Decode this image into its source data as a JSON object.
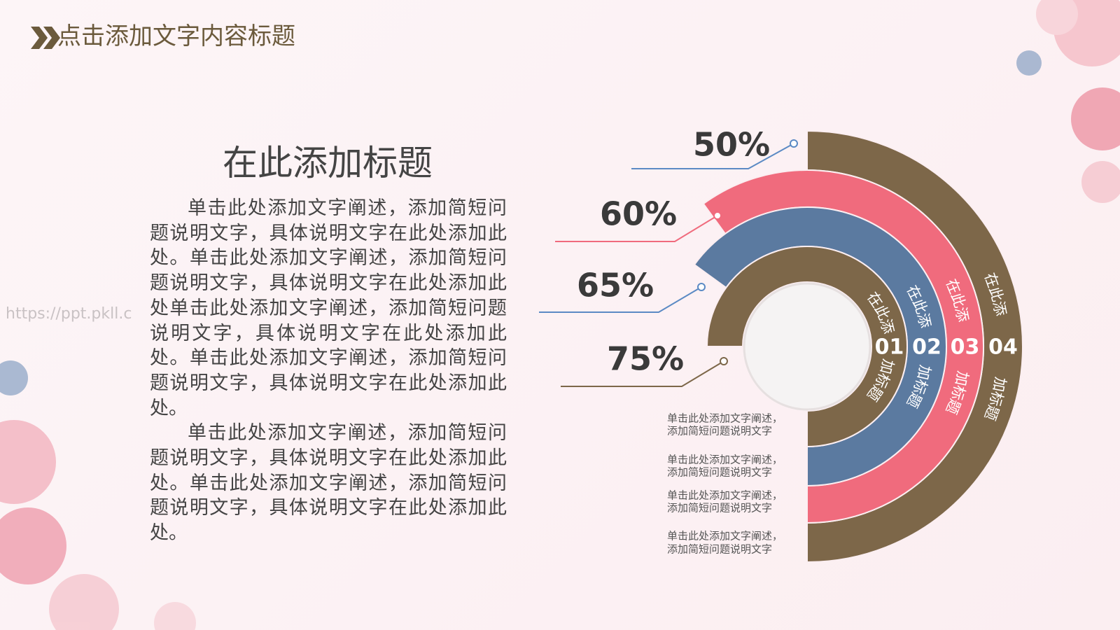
{
  "header": {
    "title": "点击添加文字内容标题"
  },
  "watermark": "https://ppt.pkll.c",
  "text_block": {
    "heading": "在此添加标题",
    "paragraphs": [
      "单击此处添加文字阐述，添加简短问题说明文字，具体说明文字在此处添加此处。单击此处添加文字阐述，添加简短问题说明文字，具体说明文字在此处添加此处单击此处添加文字阐述，添加简短问题说明文字，具体说明文字在此处添加此处。单击此处添加文字阐述，添加简短问题说明文字，具体说明文字在此处添加此处。",
      "单击此处添加文字阐述，添加简短问题说明文字，具体说明文字在此处添加此处。单击此处添加文字阐述，添加简短问题说明文字，具体说明文字在此处添加此处。"
    ]
  },
  "chart_data": {
    "type": "radial-bar",
    "categories": [
      "01",
      "02",
      "03",
      "04"
    ],
    "label_top": [
      "在此添",
      "在此添",
      "在此添",
      "在此添"
    ],
    "label_bottom": [
      "加标题",
      "加标题",
      "加标题",
      "加标题"
    ],
    "values": [
      75,
      65,
      60,
      50
    ],
    "value_labels": [
      "75%",
      "65%",
      "60%",
      "50%"
    ],
    "colors": [
      "#7d6749",
      "#5b7aa0",
      "#f06b7d",
      "#7d6749"
    ],
    "leader_colors": [
      "#7d6749",
      "#5b8ac4",
      "#f06b7d",
      "#5b8ac4"
    ],
    "notes": [
      [
        "单击此处添加文字阐述，",
        "添加简短问题说明文字"
      ],
      [
        "单击此处添加文字阐述，",
        "添加简短问题说明文字"
      ],
      [
        "单击此处添加文字阐述，",
        "添加简短问题说明文字"
      ],
      [
        "单击此处添加文字阐述，",
        "添加简短问题说明文字"
      ]
    ]
  }
}
